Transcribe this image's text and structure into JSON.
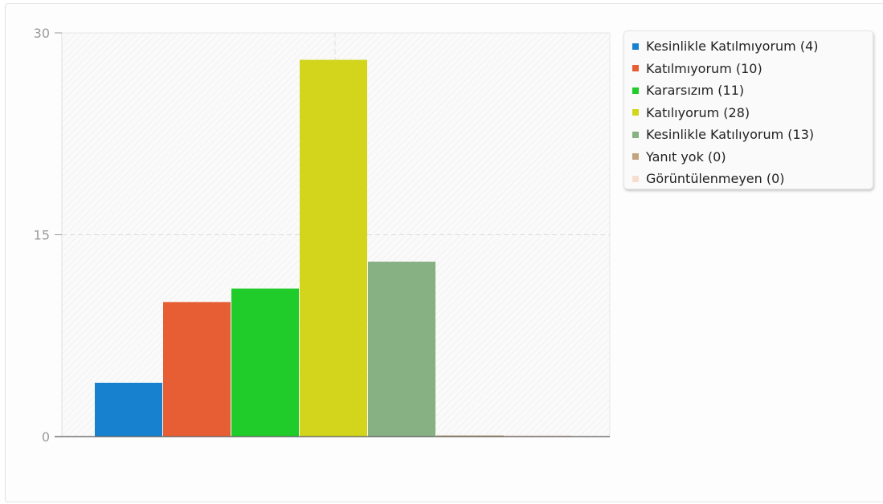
{
  "chart_data": {
    "type": "bar",
    "categories": [
      "Kesinlikle Katılmıyorum (4)",
      "Katılmıyorum (10)",
      "Kararsızım (11)",
      "Katılıyorum (28)",
      "Kesinlikle Katılıyorum (13)",
      "Yanıt yok (0)",
      "Görüntülenmeyen (0)"
    ],
    "values": [
      4,
      10,
      11,
      28,
      13,
      0,
      0
    ],
    "colors": [
      "#1780cf",
      "#e85e34",
      "#20cc2a",
      "#d3d41c",
      "#88b183",
      "#c1a37d",
      "#f7ddd0"
    ],
    "ylim": [
      0,
      30
    ],
    "yticks": [
      "0",
      "15",
      "30"
    ],
    "title": "",
    "xlabel": "",
    "ylabel": "",
    "grid": true,
    "legend": "top-right"
  }
}
